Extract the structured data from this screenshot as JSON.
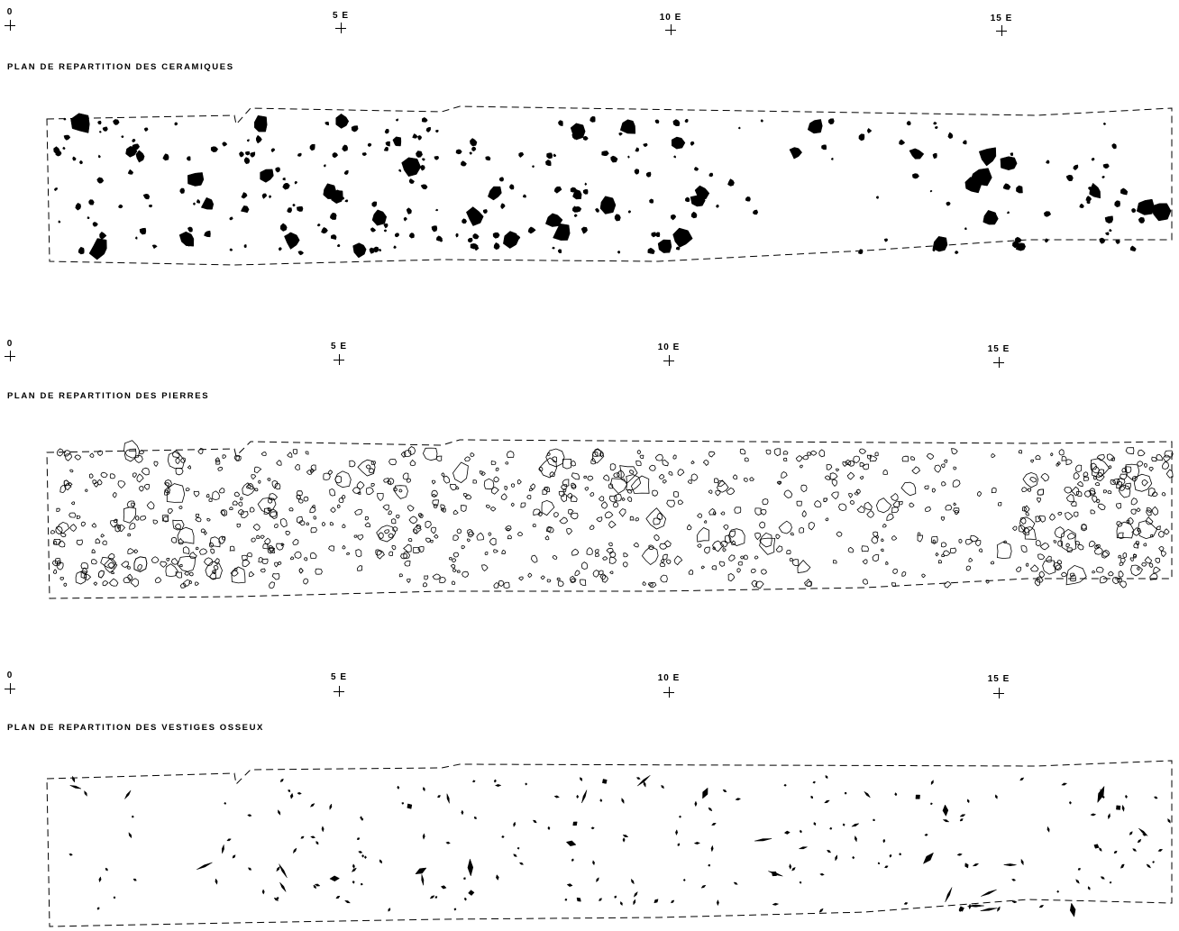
{
  "scale": {
    "ticks": [
      {
        "label": "0",
        "pos": 0
      },
      {
        "label": "5 E",
        "pos": 5
      },
      {
        "label": "10 E",
        "pos": 10
      },
      {
        "label": "15 E",
        "pos": 15
      }
    ]
  },
  "panels": [
    {
      "id": "ceramiques",
      "title": "PLAN DE REPARTITION DES CERAMIQUES",
      "symbol": "filled"
    },
    {
      "id": "pierres",
      "title": "PLAN DE REPARTITION DES PIERRES",
      "symbol": "outline"
    },
    {
      "id": "osseux",
      "title": "PLAN DE REPARTITION DES VESTIGES OSSEUX",
      "symbol": "filled-elongated"
    }
  ],
  "colors": {
    "ink": "#000000",
    "background": "#ffffff"
  }
}
